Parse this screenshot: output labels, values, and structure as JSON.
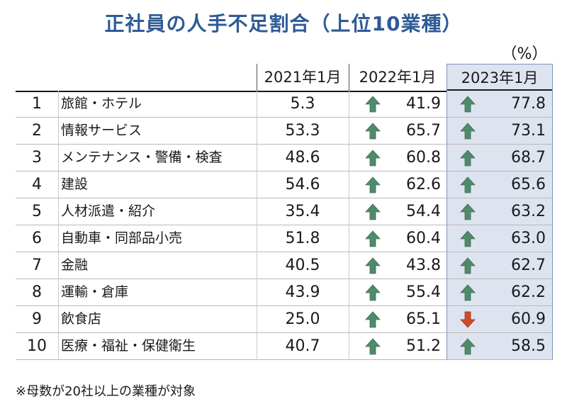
{
  "title": "正社員の人手不足割合（上位10業種）",
  "unit": "（%）",
  "footnote": "※母数が20社以上の業種が対象",
  "colors": {
    "title": "#2f5b96",
    "up_arrow": "#4f8a6b",
    "down_arrow": "#d0482a",
    "highlight": "#dde4ef"
  },
  "chart_data": {
    "type": "table",
    "title": "正社員の人手不足割合（上位10業種）",
    "unit": "（%）",
    "columns": [
      "2021年1月",
      "2022年1月",
      "2023年1月"
    ],
    "rows": [
      {
        "rank": "1",
        "industry": "旅館・ホテル",
        "values": [
          "5.3",
          "41.9",
          "77.8"
        ],
        "trend": [
          "",
          "up",
          "up"
        ]
      },
      {
        "rank": "2",
        "industry": "情報サービス",
        "values": [
          "53.3",
          "65.7",
          "73.1"
        ],
        "trend": [
          "",
          "up",
          "up"
        ]
      },
      {
        "rank": "3",
        "industry": "メンテナンス・警備・検査",
        "values": [
          "48.6",
          "60.8",
          "68.7"
        ],
        "trend": [
          "",
          "up",
          "up"
        ]
      },
      {
        "rank": "4",
        "industry": "建設",
        "values": [
          "54.6",
          "62.6",
          "65.6"
        ],
        "trend": [
          "",
          "up",
          "up"
        ]
      },
      {
        "rank": "5",
        "industry": "人材派遣・紹介",
        "values": [
          "35.4",
          "54.4",
          "63.2"
        ],
        "trend": [
          "",
          "up",
          "up"
        ]
      },
      {
        "rank": "6",
        "industry": "自動車・同部品小売",
        "values": [
          "51.8",
          "60.4",
          "63.0"
        ],
        "trend": [
          "",
          "up",
          "up"
        ]
      },
      {
        "rank": "7",
        "industry": "金融",
        "values": [
          "40.5",
          "43.8",
          "62.7"
        ],
        "trend": [
          "",
          "up",
          "up"
        ]
      },
      {
        "rank": "8",
        "industry": "運輸・倉庫",
        "values": [
          "43.9",
          "55.4",
          "62.2"
        ],
        "trend": [
          "",
          "up",
          "up"
        ]
      },
      {
        "rank": "9",
        "industry": "飲食店",
        "values": [
          "25.0",
          "65.1",
          "60.9"
        ],
        "trend": [
          "",
          "up",
          "down"
        ]
      },
      {
        "rank": "10",
        "industry": "医療・福祉・保健衛生",
        "values": [
          "40.7",
          "51.2",
          "58.5"
        ],
        "trend": [
          "",
          "up",
          "up"
        ]
      }
    ]
  }
}
